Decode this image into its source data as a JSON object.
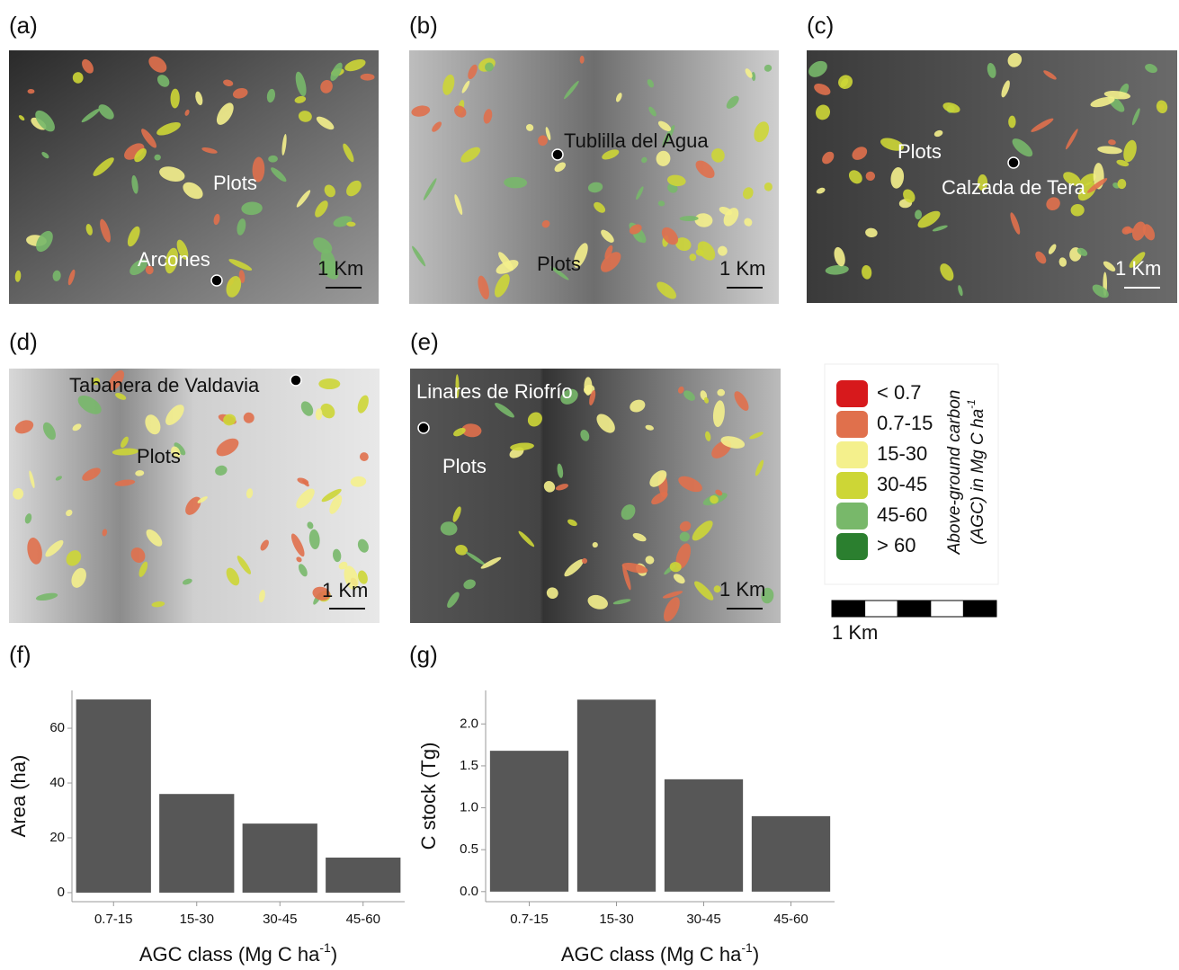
{
  "panels": [
    {
      "label": "(a)",
      "place": "Arcones",
      "plots": "Plots",
      "scale": "1 Km"
    },
    {
      "label": "(b)",
      "place": "Tublilla del Agua",
      "plots": "Plots",
      "scale": "1 Km"
    },
    {
      "label": "(c)",
      "place": "Calzada de Tera",
      "plots": "Plots",
      "scale": "1 Km"
    },
    {
      "label": "(d)",
      "place": "Tabanera de Valdavia",
      "plots": "Plots",
      "scale": "1 Km"
    },
    {
      "label": "(e)",
      "place": "Linares de Riofrío",
      "plots": "Plots",
      "scale": "1 Km"
    }
  ],
  "legend": {
    "title": [
      "Above-ground carbon",
      "(AGC)  in Mg C ha",
      "-1"
    ],
    "classes": [
      {
        "label": "< 0.7",
        "color": "#d7191c"
      },
      {
        "label": "0.7-15",
        "color": "#e0704c"
      },
      {
        "label": "15-30",
        "color": "#f4f08c"
      },
      {
        "label": "30-45",
        "color": "#cdd636"
      },
      {
        "label": "45-60",
        "color": "#78b86a"
      },
      {
        "label": "> 60",
        "color": "#2b7f2f"
      }
    ],
    "scale": "1 Km"
  },
  "chart_data": [
    {
      "type": "bar",
      "label": "(f)",
      "categories": [
        "0.7-15",
        "15-30",
        "30-45",
        "45-60"
      ],
      "values": [
        70.5,
        36,
        25.2,
        12.8
      ],
      "color": "#575757",
      "ylim": [
        -3.3,
        73.8
      ],
      "yticks": [
        0,
        20,
        40,
        60
      ],
      "y_label": "Area (ha)",
      "x_label": [
        "AGC class (Mg C ha",
        "-1",
        ")"
      ]
    },
    {
      "type": "bar",
      "label": "(g)",
      "categories": [
        "0.7-15",
        "15-30",
        "30-45",
        "45-60"
      ],
      "values": [
        1.68,
        2.29,
        1.34,
        0.9
      ],
      "color": "#575757",
      "ylim": [
        -0.12,
        2.4
      ],
      "yticks": [
        {
          "value": 0,
          "label": "0.0"
        },
        {
          "value": 0.5,
          "label": "0.5"
        },
        {
          "value": 1,
          "label": "1.0"
        },
        {
          "value": 1.5,
          "label": "1.5"
        },
        {
          "value": 2,
          "label": "2.0"
        }
      ],
      "y_label": "C stock (Tg)",
      "x_label": [
        "AGC class (Mg C ha",
        "-1",
        ")"
      ]
    }
  ]
}
